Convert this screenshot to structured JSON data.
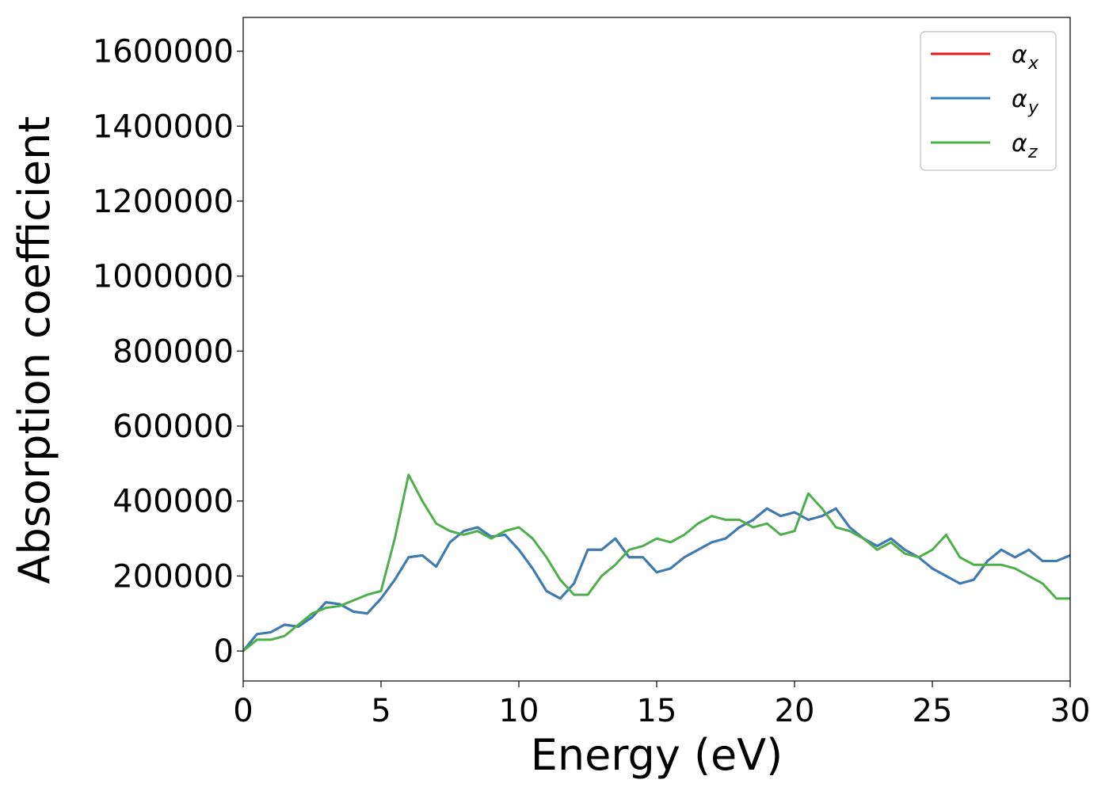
{
  "chart_data": {
    "type": "line",
    "title": "",
    "xlabel": "Energy (eV)",
    "ylabel": "Absorption coefficient",
    "xlim": [
      0,
      30
    ],
    "ylim": [
      -80000,
      1690000
    ],
    "xticks": [
      0,
      5,
      10,
      15,
      20,
      25,
      30
    ],
    "yticks": [
      0,
      200000,
      400000,
      600000,
      800000,
      1000000,
      1200000,
      1400000,
      1600000
    ],
    "grid": false,
    "legend_position": "top-right",
    "colors": {
      "x": "#e41a1c",
      "y": "#377eb8",
      "z": "#4daf4a"
    },
    "series": [
      {
        "key": "x",
        "name": "α",
        "subscript": "x",
        "x": [
          0,
          0.5,
          1,
          1.5,
          2,
          2.5,
          3,
          3.5,
          4,
          4.5,
          5,
          5.5,
          6,
          6.5,
          7,
          7.5,
          8,
          8.5,
          9,
          9.5,
          10,
          10.5,
          11,
          11.5,
          12,
          12.5,
          13,
          13.5,
          14,
          14.5,
          15,
          15.5,
          16,
          16.5,
          17,
          17.5,
          18,
          18.5,
          19,
          19.5,
          20,
          20.5,
          21,
          21.5,
          22,
          22.5,
          23,
          23.5,
          24,
          24.5,
          25,
          25.5,
          26,
          26.5,
          27,
          27.5,
          28,
          28.5,
          29,
          29.5,
          30
        ],
        "y": [
          0,
          45000,
          50000,
          70000,
          65000,
          90000,
          130000,
          125000,
          105000,
          100000,
          140000,
          190000,
          250000,
          255000,
          225000,
          290000,
          320000,
          330000,
          305000,
          310000,
          270000,
          220000,
          160000,
          140000,
          180000,
          270000,
          270000,
          300000,
          250000,
          250000,
          210000,
          220000,
          250000,
          270000,
          290000,
          300000,
          330000,
          350000,
          380000,
          360000,
          370000,
          350000,
          360000,
          380000,
          330000,
          300000,
          280000,
          300000,
          270000,
          250000,
          220000,
          200000,
          180000,
          190000,
          240000,
          270000,
          250000,
          270000,
          240000,
          240000,
          255000
        ]
      },
      {
        "key": "y",
        "name": "α",
        "subscript": "y",
        "x": [
          0,
          0.5,
          1,
          1.5,
          2,
          2.5,
          3,
          3.5,
          4,
          4.5,
          5,
          5.5,
          6,
          6.5,
          7,
          7.5,
          8,
          8.5,
          9,
          9.5,
          10,
          10.5,
          11,
          11.5,
          12,
          12.5,
          13,
          13.5,
          14,
          14.5,
          15,
          15.5,
          16,
          16.5,
          17,
          17.5,
          18,
          18.5,
          19,
          19.5,
          20,
          20.5,
          21,
          21.5,
          22,
          22.5,
          23,
          23.5,
          24,
          24.5,
          25,
          25.5,
          26,
          26.5,
          27,
          27.5,
          28,
          28.5,
          29,
          29.5,
          30
        ],
        "y": [
          0,
          45000,
          50000,
          70000,
          65000,
          90000,
          130000,
          125000,
          105000,
          100000,
          140000,
          190000,
          250000,
          255000,
          225000,
          290000,
          320000,
          330000,
          305000,
          310000,
          270000,
          220000,
          160000,
          140000,
          180000,
          270000,
          270000,
          300000,
          250000,
          250000,
          210000,
          220000,
          250000,
          270000,
          290000,
          300000,
          330000,
          350000,
          380000,
          360000,
          370000,
          350000,
          360000,
          380000,
          330000,
          300000,
          280000,
          300000,
          270000,
          250000,
          220000,
          200000,
          180000,
          190000,
          240000,
          270000,
          250000,
          270000,
          240000,
          240000,
          255000
        ]
      },
      {
        "key": "z",
        "name": "α",
        "subscript": "z",
        "x": [
          0,
          0.5,
          1,
          1.5,
          2,
          2.5,
          3,
          3.5,
          4,
          4.5,
          5,
          5.5,
          6,
          6.5,
          7,
          7.5,
          8,
          8.5,
          9,
          9.5,
          10,
          10.5,
          11,
          11.5,
          12,
          12.5,
          13,
          13.5,
          14,
          14.5,
          15,
          15.5,
          16,
          16.5,
          17,
          17.5,
          18,
          18.5,
          19,
          19.5,
          20,
          20.5,
          21,
          21.5,
          22,
          22.5,
          23,
          23.5,
          24,
          24.5,
          25,
          25.5,
          26,
          26.5,
          27,
          27.5,
          28,
          28.5,
          29,
          29.5,
          30
        ],
        "y": [
          0,
          30000,
          30000,
          40000,
          70000,
          100000,
          115000,
          120000,
          135000,
          150000,
          160000,
          300000,
          470000,
          400000,
          340000,
          320000,
          310000,
          320000,
          300000,
          320000,
          330000,
          300000,
          250000,
          190000,
          150000,
          150000,
          200000,
          230000,
          270000,
          280000,
          300000,
          290000,
          310000,
          340000,
          360000,
          350000,
          350000,
          330000,
          340000,
          310000,
          320000,
          420000,
          380000,
          330000,
          320000,
          300000,
          270000,
          290000,
          260000,
          250000,
          270000,
          310000,
          250000,
          230000,
          230000,
          230000,
          220000,
          200000,
          180000,
          140000,
          140000
        ]
      }
    ]
  }
}
